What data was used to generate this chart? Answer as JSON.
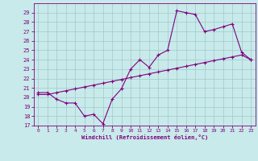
{
  "xlabel": "Windchill (Refroidissement éolien,°C)",
  "bg_color": "#c8eaea",
  "grid_color": "#a0c8c8",
  "line_color": "#800080",
  "ylim": [
    17,
    30
  ],
  "xlim": [
    -0.5,
    23.5
  ],
  "yticks": [
    17,
    18,
    19,
    20,
    21,
    22,
    23,
    24,
    25,
    26,
    27,
    28,
    29
  ],
  "xticks": [
    0,
    1,
    2,
    3,
    4,
    5,
    6,
    7,
    8,
    9,
    10,
    11,
    12,
    13,
    14,
    15,
    16,
    17,
    18,
    19,
    20,
    21,
    22,
    23
  ],
  "series1_x": [
    0,
    1,
    2,
    3,
    4,
    5,
    6,
    7,
    8,
    9,
    10,
    11,
    12,
    13,
    14,
    15,
    16,
    17,
    18,
    19,
    20,
    21,
    22,
    23
  ],
  "series1_y": [
    20.5,
    20.5,
    19.8,
    19.4,
    19.4,
    18.0,
    18.2,
    17.2,
    19.8,
    20.9,
    23.0,
    24.0,
    23.2,
    24.5,
    25.0,
    29.2,
    29.0,
    28.8,
    27.0,
    27.2,
    27.5,
    27.8,
    24.8,
    24.0
  ],
  "series2_x": [
    0,
    1,
    2,
    3,
    4,
    5,
    6,
    7,
    8,
    9,
    10,
    11,
    12,
    13,
    14,
    15,
    16,
    17,
    18,
    19,
    20,
    21,
    22,
    23
  ],
  "series2_y": [
    20.3,
    20.3,
    20.5,
    20.7,
    20.9,
    21.1,
    21.3,
    21.5,
    21.7,
    21.9,
    22.1,
    22.3,
    22.5,
    22.7,
    22.9,
    23.1,
    23.3,
    23.5,
    23.7,
    23.9,
    24.1,
    24.3,
    24.5,
    24.0
  ],
  "marker": "+",
  "markersize": 3,
  "linewidth": 0.8
}
